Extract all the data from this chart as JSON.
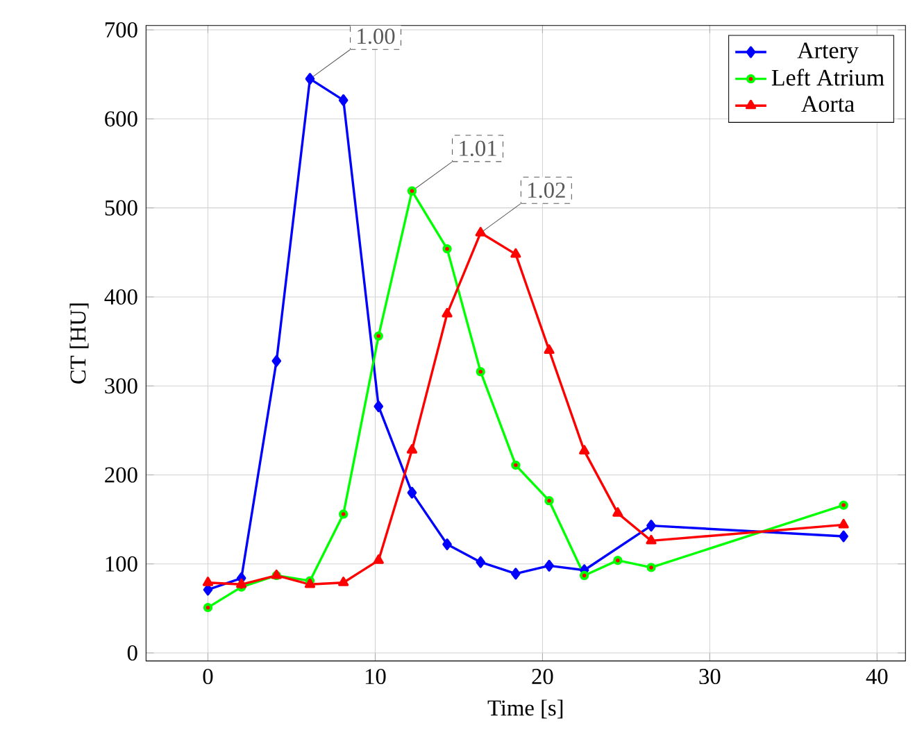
{
  "chart_data": {
    "type": "line",
    "xlabel": "Time [s]",
    "ylabel": "CT [HU]",
    "xlim": [
      -3.7,
      41.7
    ],
    "ylim": [
      -9,
      705
    ],
    "xticks": [
      0,
      10,
      20,
      30,
      40
    ],
    "yticks": [
      0,
      100,
      200,
      300,
      400,
      500,
      600,
      700
    ],
    "grid": true,
    "legend": "top right",
    "line_style": "solid",
    "series": [
      {
        "name": "Artery",
        "color": "#0000ff",
        "marker": "diamond",
        "x": [
          0,
          2,
          4.1,
          6.1,
          8.1,
          10.2,
          12.2,
          14.3,
          16.3,
          18.4,
          20.4,
          22.5,
          24.5,
          26.5,
          38
        ],
        "values": [
          71,
          84,
          328,
          645,
          621,
          277,
          180,
          122,
          102,
          89,
          98,
          93,
          null,
          143,
          131
        ]
      },
      {
        "name": "Left Atrium",
        "color": "#00ff00",
        "marker": "circle",
        "x": [
          0,
          2,
          4.1,
          6.1,
          8.1,
          10.2,
          12.2,
          14.3,
          16.3,
          18.4,
          20.4,
          22.5,
          24.5,
          26.5,
          38
        ],
        "values": [
          51,
          74,
          87,
          81,
          156,
          356,
          519,
          454,
          316,
          211,
          171,
          87,
          104,
          96,
          166
        ]
      },
      {
        "name": "Aorta",
        "color": "#ff0000",
        "marker": "triangle",
        "x": [
          0,
          2,
          4.1,
          6.1,
          8.1,
          10.2,
          12.2,
          14.3,
          16.3,
          18.4,
          20.4,
          22.5,
          24.5,
          26.5,
          38
        ],
        "values": [
          79,
          77,
          87,
          77,
          79,
          104,
          228,
          381,
          472,
          448,
          340,
          227,
          157,
          126,
          144
        ]
      }
    ],
    "annotations": [
      {
        "text": "1.00",
        "x": 6.1,
        "y": 645
      },
      {
        "text": "1.01",
        "x": 12.2,
        "y": 519
      },
      {
        "text": "1.02",
        "x": 16.3,
        "y": 472
      }
    ]
  }
}
